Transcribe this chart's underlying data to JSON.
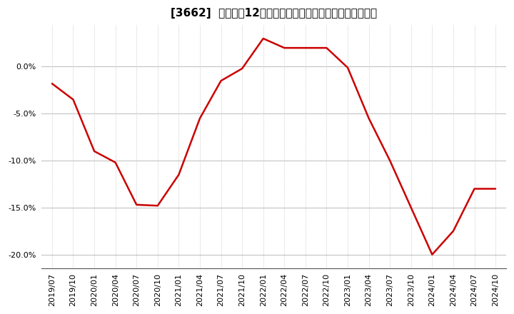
{
  "title": "[3662]  売上高の12か月移動合計の対前年同期増減率の推移",
  "line_color": "#cc0000",
  "background_color": "#ffffff",
  "plot_bg_color": "#ffffff",
  "grid_color_solid": "#bbbbbb",
  "grid_color_dot": "#bbbbbb",
  "dates": [
    "2019/07",
    "2019/10",
    "2020/01",
    "2020/04",
    "2020/07",
    "2020/10",
    "2021/01",
    "2021/04",
    "2021/07",
    "2021/10",
    "2022/01",
    "2022/04",
    "2022/07",
    "2022/10",
    "2023/01",
    "2023/04",
    "2023/07",
    "2023/10",
    "2024/01",
    "2024/04",
    "2024/07",
    "2024/10"
  ],
  "values": [
    -1.8,
    -3.5,
    -9.0,
    -10.2,
    -14.7,
    -14.8,
    -11.5,
    -5.5,
    -1.5,
    -0.2,
    3.0,
    2.0,
    2.0,
    2.0,
    -0.1,
    -5.5,
    -10.0,
    -15.0,
    -20.0,
    -17.5,
    -13.0,
    -13.0
  ],
  "ylim": [
    -21.5,
    4.5
  ],
  "yticks": [
    0.0,
    -5.0,
    -10.0,
    -15.0,
    -20.0
  ],
  "figsize": [
    7.2,
    4.4
  ],
  "dpi": 100,
  "title_fontsize": 11,
  "tick_fontsize": 8,
  "linewidth": 1.8
}
